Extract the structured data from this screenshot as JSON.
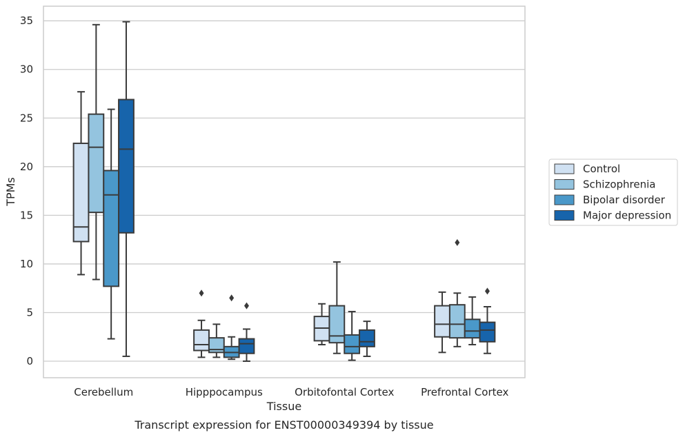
{
  "caption": "Transcript expression for ENST00000349394 by tissue",
  "chart_data": {
    "type": "box",
    "title": "",
    "xlabel": "Tissue",
    "ylabel": "TPMs",
    "ylim": [
      -1.7,
      36.5
    ],
    "yticks": [
      0,
      5,
      10,
      15,
      20,
      25,
      30,
      35
    ],
    "grid": "horizontal",
    "legend_position": "right",
    "categories": [
      "Cerebellum",
      "Hipppocampus",
      "Orbitofontal Cortex",
      "Prefrontal Cortex"
    ],
    "series": [
      {
        "name": "Control",
        "color": "#d0e1f2",
        "boxes": [
          {
            "whislo": 8.9,
            "q1": 12.3,
            "med": 13.8,
            "q3": 22.4,
            "whishi": 27.7,
            "fliers": []
          },
          {
            "whislo": 0.4,
            "q1": 1.1,
            "med": 1.7,
            "q3": 3.2,
            "whishi": 4.2,
            "fliers": [
              7.0
            ]
          },
          {
            "whislo": 1.7,
            "q1": 2.1,
            "med": 3.4,
            "q3": 4.6,
            "whishi": 5.9,
            "fliers": []
          },
          {
            "whislo": 0.9,
            "q1": 2.5,
            "med": 3.8,
            "q3": 5.7,
            "whishi": 7.1,
            "fliers": []
          }
        ]
      },
      {
        "name": "Schizophrenia",
        "color": "#94c4df",
        "boxes": [
          {
            "whislo": 8.4,
            "q1": 15.3,
            "med": 22.0,
            "q3": 25.4,
            "whishi": 34.6,
            "fliers": []
          },
          {
            "whislo": 0.4,
            "q1": 0.9,
            "med": 1.2,
            "q3": 2.4,
            "whishi": 3.8,
            "fliers": []
          },
          {
            "whislo": 0.8,
            "q1": 1.9,
            "med": 2.6,
            "q3": 5.7,
            "whishi": 10.2,
            "fliers": []
          },
          {
            "whislo": 1.5,
            "q1": 2.4,
            "med": 3.8,
            "q3": 5.8,
            "whishi": 7.0,
            "fliers": [
              12.2
            ]
          }
        ]
      },
      {
        "name": "Bipolar disorder",
        "color": "#4a98c9",
        "boxes": [
          {
            "whislo": 2.3,
            "q1": 7.7,
            "med": 17.1,
            "q3": 19.6,
            "whishi": 25.9,
            "fliers": []
          },
          {
            "whislo": 0.2,
            "q1": 0.4,
            "med": 0.9,
            "q3": 1.5,
            "whishi": 2.5,
            "fliers": [
              6.5
            ]
          },
          {
            "whislo": 0.1,
            "q1": 0.8,
            "med": 1.5,
            "q3": 2.7,
            "whishi": 5.1,
            "fliers": []
          },
          {
            "whislo": 1.7,
            "q1": 2.4,
            "med": 3.1,
            "q3": 4.3,
            "whishi": 6.6,
            "fliers": []
          }
        ]
      },
      {
        "name": "Major depression",
        "color": "#1764ab",
        "boxes": [
          {
            "whislo": 0.5,
            "q1": 13.2,
            "med": 21.8,
            "q3": 26.9,
            "whishi": 34.9,
            "fliers": []
          },
          {
            "whislo": 0.0,
            "q1": 0.8,
            "med": 1.8,
            "q3": 2.3,
            "whishi": 3.3,
            "fliers": [
              5.7
            ]
          },
          {
            "whislo": 0.5,
            "q1": 1.5,
            "med": 2.0,
            "q3": 3.2,
            "whishi": 4.1,
            "fliers": []
          },
          {
            "whislo": 0.8,
            "q1": 2.0,
            "med": 3.2,
            "q3": 4.0,
            "whishi": 5.6,
            "fliers": [
              7.2
            ]
          }
        ]
      }
    ]
  }
}
